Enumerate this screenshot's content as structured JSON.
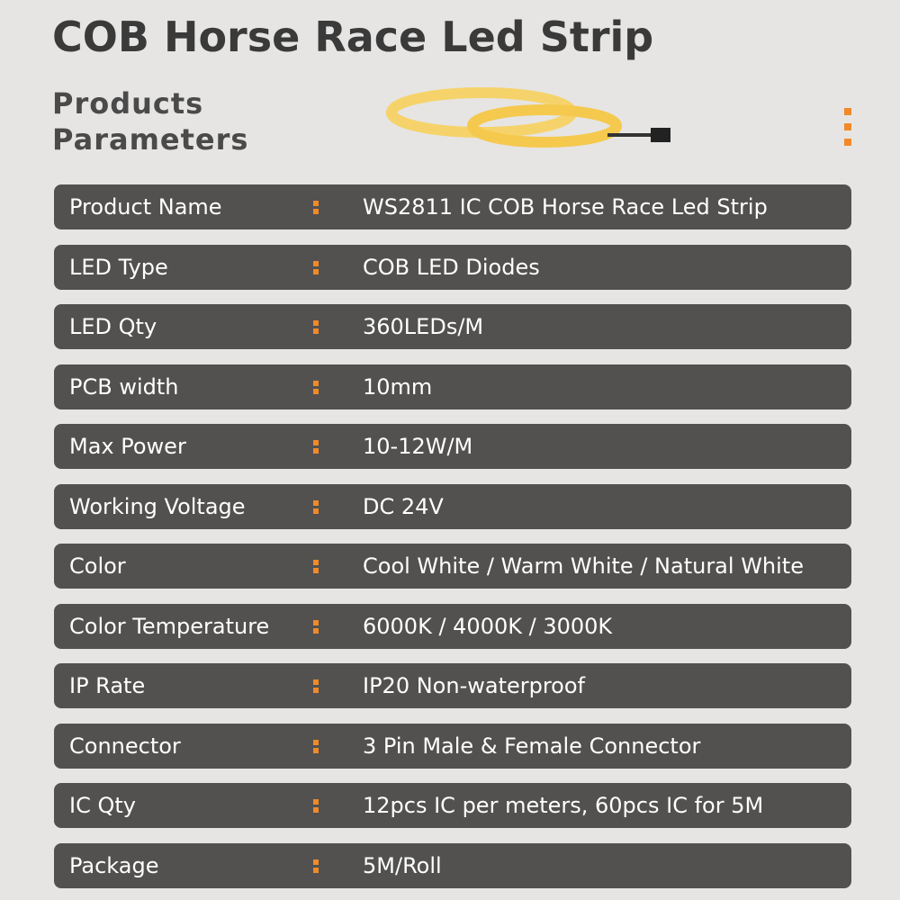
{
  "header": {
    "title": "COB Horse Race Led Strip",
    "subtitle_line1": "Products",
    "subtitle_line2": "Parameters"
  },
  "table": {
    "rows": [
      [
        "Product Name",
        "WS2811 IC COB Horse Race Led Strip"
      ],
      [
        "LED Type",
        "COB LED Diodes"
      ],
      [
        "LED Qty",
        "360LEDs/M"
      ],
      [
        "PCB width",
        "10mm"
      ],
      [
        "Max Power",
        "10-12W/M"
      ],
      [
        "Working Voltage",
        "DC 24V"
      ],
      [
        "Color",
        "Cool White / Warm White / Natural White"
      ],
      [
        "Color Temperature",
        "6000K / 4000K /  3000K"
      ],
      [
        "IP Rate",
        "IP20 Non-waterproof"
      ],
      [
        "Connector",
        "3 Pin Male & Female Connector"
      ],
      [
        "IC Qty",
        "12pcs IC per meters, 60pcs IC for 5M"
      ],
      [
        "Package",
        "5M/Roll"
      ]
    ]
  }
}
